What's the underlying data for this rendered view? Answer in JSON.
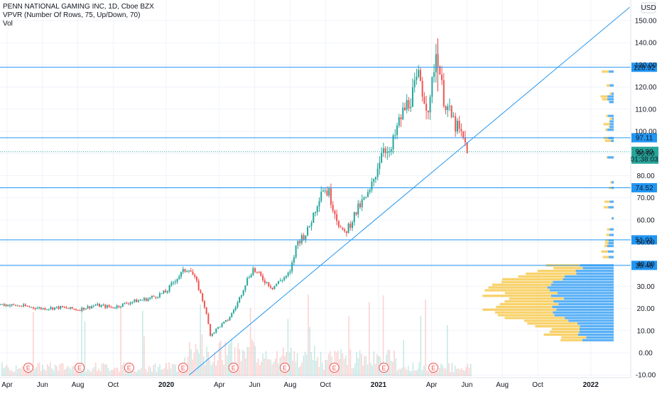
{
  "legend": {
    "symbol": "PENN NATIONAL GAMING INC, 1D, Cboe BZX",
    "vpvr": "VPVR (Number Of Rows, 75, Up/Down, 70)",
    "vol": "Vol"
  },
  "currency": "USD",
  "chart_data": {
    "type": "candlestick",
    "y_ticks": [
      -10,
      0,
      10,
      20,
      30,
      40,
      50,
      60,
      70,
      80,
      90,
      100,
      110,
      120,
      130,
      140,
      150
    ],
    "y_tick_labels": [
      "-10.00",
      "0.00",
      "10.00",
      "20.00",
      "30.00",
      "40.00",
      "50.00",
      "60.00",
      "70.00",
      "80.00",
      "90.00",
      "100.00",
      "110.00",
      "120.00",
      "130.00",
      "140.00",
      "150.00"
    ],
    "x_labels": [
      "Apr",
      "Jun",
      "Aug",
      "Oct",
      "2020",
      "Apr",
      "Jun",
      "Aug",
      "Oct",
      "2021",
      "Apr",
      "Jun",
      "Aug",
      "Oct",
      "2022"
    ],
    "x_label_index": [
      0,
      2,
      4,
      6,
      9,
      12,
      14,
      16,
      18,
      21,
      24,
      26,
      28,
      30,
      33
    ],
    "x_label_bold": [
      false,
      false,
      false,
      false,
      true,
      false,
      false,
      false,
      false,
      true,
      false,
      false,
      false,
      false,
      true
    ],
    "horizontal_levels": [
      {
        "value": 128.92,
        "label": "128.92"
      },
      {
        "value": 97.11,
        "label": "97.11"
      },
      {
        "value": 74.52,
        "label": "74.52"
      },
      {
        "value": 51.01,
        "label": "51.01"
      },
      {
        "value": 39.48,
        "label": "39.48"
      }
    ],
    "last_price": {
      "value": 90.8,
      "label": "90.80",
      "countdown": "01:38:03"
    },
    "trendline": {
      "from": {
        "m": 10.3,
        "v": -10
      },
      "to": {
        "m": 35.2,
        "v": 156
      }
    },
    "earnings_markers": [
      1.2,
      4.1,
      6.9,
      9.95,
      12.8,
      15.7,
      18.5,
      21.3,
      24.1
    ],
    "earnings_label": "E",
    "price_path": [
      {
        "m": -0.5,
        "v": 22.0
      },
      {
        "m": 1.0,
        "v": 21.0
      },
      {
        "m": 2.0,
        "v": 20.0
      },
      {
        "m": 3.0,
        "v": 20.5
      },
      {
        "m": 4.0,
        "v": 19.5
      },
      {
        "m": 5.0,
        "v": 21.5
      },
      {
        "m": 6.0,
        "v": 20.5
      },
      {
        "m": 7.0,
        "v": 23.0
      },
      {
        "m": 8.0,
        "v": 24.5
      },
      {
        "m": 9.0,
        "v": 27.5
      },
      {
        "m": 9.5,
        "v": 33.0
      },
      {
        "m": 10.0,
        "v": 37.0
      },
      {
        "m": 10.3,
        "v": 38.5
      },
      {
        "m": 10.8,
        "v": 30.0
      },
      {
        "m": 11.2,
        "v": 20.0
      },
      {
        "m": 11.5,
        "v": 8.0
      },
      {
        "m": 12.0,
        "v": 12.0
      },
      {
        "m": 12.5,
        "v": 15.0
      },
      {
        "m": 13.0,
        "v": 22.0
      },
      {
        "m": 13.5,
        "v": 32.0
      },
      {
        "m": 13.9,
        "v": 38.0
      },
      {
        "m": 14.5,
        "v": 33.0
      },
      {
        "m": 15.0,
        "v": 29.5
      },
      {
        "m": 15.5,
        "v": 33.0
      },
      {
        "m": 16.0,
        "v": 36.0
      },
      {
        "m": 16.4,
        "v": 50.0
      },
      {
        "m": 17.0,
        "v": 55.0
      },
      {
        "m": 17.5,
        "v": 67.0
      },
      {
        "m": 17.8,
        "v": 75.0
      },
      {
        "m": 18.2,
        "v": 72.0
      },
      {
        "m": 18.6,
        "v": 62.0
      },
      {
        "m": 19.0,
        "v": 53.0
      },
      {
        "m": 19.3,
        "v": 57.0
      },
      {
        "m": 19.7,
        "v": 63.0
      },
      {
        "m": 20.0,
        "v": 67.0
      },
      {
        "m": 20.5,
        "v": 72.0
      },
      {
        "m": 20.9,
        "v": 83.0
      },
      {
        "m": 21.3,
        "v": 95.0
      },
      {
        "m": 21.6,
        "v": 88.0
      },
      {
        "m": 22.0,
        "v": 100.0
      },
      {
        "m": 22.3,
        "v": 107.0
      },
      {
        "m": 22.6,
        "v": 112.0
      },
      {
        "m": 23.0,
        "v": 118.0
      },
      {
        "m": 23.3,
        "v": 125.0
      },
      {
        "m": 23.6,
        "v": 115.0
      },
      {
        "m": 23.9,
        "v": 110.0
      },
      {
        "m": 24.1,
        "v": 128.0
      },
      {
        "m": 24.3,
        "v": 138.0
      },
      {
        "m": 24.6,
        "v": 118.0
      },
      {
        "m": 25.0,
        "v": 108.0
      },
      {
        "m": 25.4,
        "v": 102.0
      },
      {
        "m": 25.8,
        "v": 96.0
      },
      {
        "m": 26.1,
        "v": 90.8
      }
    ]
  }
}
